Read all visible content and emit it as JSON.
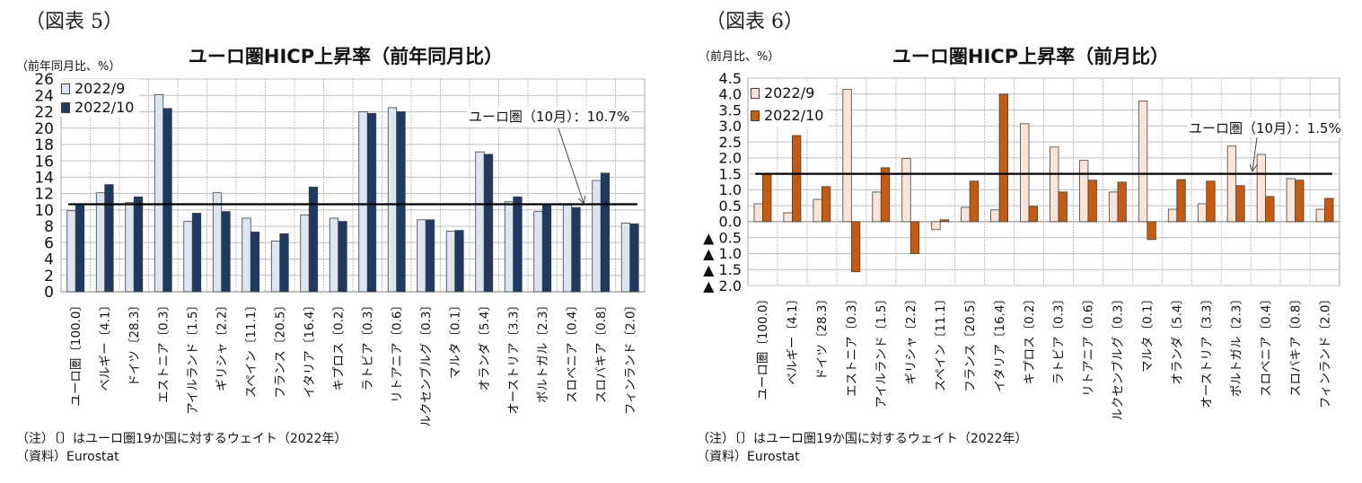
{
  "panels": [
    {
      "figure_label": "（図表 5）",
      "note": "（注）〔〕はユーロ圏19か国に対するウェイト（2022年）",
      "source": "（資料）Eurostat"
    },
    {
      "figure_label": "（図表 6）",
      "note": "（注）〔〕はユーロ圏19か国に対するウェイト（2022年）",
      "source": "（資料）Eurostat"
    }
  ],
  "chart_data": [
    {
      "type": "bar",
      "title": "ユーロ圏HICP上昇率（前年同月比）",
      "ylabel": "（前年同月比、%）",
      "xlabel": "",
      "categories": [
        "ユーロ圏〔100.0〕",
        "ベルギー〔4.1〕",
        "ドイツ〔28.3〕",
        "エストニア〔0.3〕",
        "アイルランド〔1.5〕",
        "ギリシャ〔2.2〕",
        "スペイン〔11.1〕",
        "フランス〔20.5〕",
        "イタリア〔16.4〕",
        "キプロス〔0.2〕",
        "ラトビア〔0.3〕",
        "リトアニア〔0.6〕",
        "ルクセンブルグ〔0.3〕",
        "マルタ〔0.1〕",
        "オランダ〔5.4〕",
        "オーストリア〔3.3〕",
        "ポルトガル〔2.3〕",
        "スロベニア〔0.4〕",
        "スロバキア〔0.8〕",
        "フィンランド〔2.0〕"
      ],
      "series": [
        {
          "name": "2022/9",
          "color": "#dce6f2",
          "values": [
            9.9,
            12.1,
            10.9,
            24.1,
            8.6,
            12.1,
            9.0,
            6.2,
            9.4,
            9.0,
            22.0,
            22.5,
            8.8,
            7.4,
            17.1,
            11.0,
            9.8,
            10.6,
            13.6,
            8.4
          ]
        },
        {
          "name": "2022/10",
          "color": "#1f3a60",
          "values": [
            10.7,
            13.1,
            11.6,
            22.4,
            9.6,
            9.8,
            7.3,
            7.1,
            12.8,
            8.6,
            21.8,
            22.0,
            8.8,
            7.5,
            16.8,
            11.6,
            10.6,
            10.3,
            14.5,
            8.3
          ]
        }
      ],
      "ylim": [
        0,
        26
      ],
      "yticks": [
        0,
        2,
        4,
        6,
        8,
        10,
        12,
        14,
        16,
        18,
        20,
        22,
        24,
        26
      ],
      "ytick_labels": [
        "0",
        "2",
        "4",
        "6",
        "8",
        "10",
        "12",
        "14",
        "16",
        "18",
        "20",
        "22",
        "24",
        "26"
      ],
      "reference_line": {
        "value": 10.7,
        "label": "ユーロ圏（10月）：10.7%",
        "color": "#000000"
      },
      "legend": "top-left",
      "grid": true
    },
    {
      "type": "bar",
      "title": "ユーロ圏HICP上昇率（前月比）",
      "ylabel": "（前月比、%）",
      "xlabel": "",
      "categories": [
        "ユーロ圏〔100.0〕",
        "ベルギー〔4.1〕",
        "ドイツ〔28.3〕",
        "エストニア〔0.3〕",
        "アイルランド〔1.5〕",
        "ギリシャ〔2.2〕",
        "スペイン〔11.1〕",
        "フランス〔20.5〕",
        "イタリア〔16.4〕",
        "キプロス〔0.2〕",
        "ラトビア〔0.3〕",
        "リトアニア〔0.6〕",
        "ルクセンブルグ〔0.3〕",
        "マルタ〔0.1〕",
        "オランダ〔5.4〕",
        "オーストリア〔3.3〕",
        "ポルトガル〔2.3〕",
        "スロベニア〔0.4〕",
        "スロバキア〔0.8〕",
        "フィンランド〔2.0〕"
      ],
      "series": [
        {
          "name": "2022/9",
          "color": "#fbe4d5",
          "values": [
            0.56,
            0.28,
            0.7,
            4.15,
            0.93,
            1.98,
            -0.25,
            0.45,
            0.37,
            3.07,
            2.34,
            1.92,
            0.93,
            3.78,
            0.39,
            0.56,
            2.37,
            2.11,
            1.35,
            0.39
          ]
        },
        {
          "name": "2022/10",
          "color": "#c55a11",
          "values": [
            1.5,
            2.7,
            1.1,
            -1.57,
            1.69,
            -1.0,
            0.06,
            1.27,
            4.0,
            0.48,
            0.93,
            1.3,
            1.24,
            -0.56,
            1.32,
            1.27,
            1.13,
            0.79,
            1.3,
            0.73
          ]
        }
      ],
      "ylim": [
        -2.0,
        4.5
      ],
      "yticks": [
        4.5,
        4.0,
        3.5,
        3.0,
        2.5,
        2.0,
        1.5,
        1.0,
        0.5,
        0.0,
        -0.5,
        -1.0,
        -1.5,
        -2.0
      ],
      "ytick_labels": [
        "4.5",
        "4.0",
        "3.5",
        "3.0",
        "2.5",
        "2.0",
        "1.5",
        "1.0",
        "0.5",
        "0.0",
        "▲ 0.5",
        "▲ 1.0",
        "▲ 1.5",
        "▲ 2.0"
      ],
      "reference_line": {
        "value": 1.5,
        "label": "ユーロ圏（10月）：1.5%",
        "color": "#000000"
      },
      "legend": "top-left",
      "grid": true
    }
  ]
}
